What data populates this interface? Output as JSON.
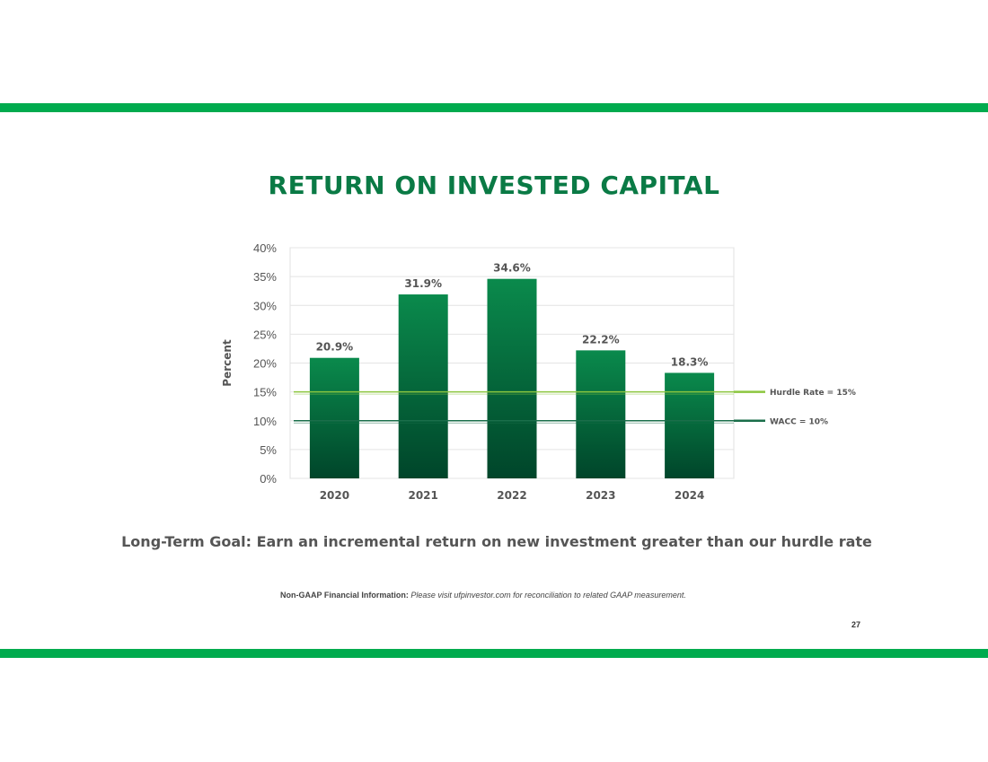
{
  "slide": {
    "title": "RETURN ON INVESTED CAPITAL",
    "goal": "Long-Term Goal: Earn an incremental return on new investment greater than our hurdle rate",
    "disclaimer_lead": "Non-GAAP Financial Information:",
    "disclaimer_body": "Please visit ufpinvestor.com for reconciliation to related GAAP measurement.",
    "page_number": "27"
  },
  "colors": {
    "band": "#00ab4e",
    "title": "#0a7a45",
    "bar_top": "#0a8a4c",
    "bar_bottom": "#00452a",
    "hurdle_line": "#8cc63f",
    "wacc_line": "#1a6e4a"
  },
  "chart_data": {
    "type": "bar",
    "categories": [
      "2020",
      "2021",
      "2022",
      "2023",
      "2024"
    ],
    "values": [
      20.9,
      31.9,
      34.6,
      22.2,
      18.3
    ],
    "value_labels": [
      "20.9%",
      "31.9%",
      "34.6%",
      "22.2%",
      "18.3%"
    ],
    "ylabel": "Percent",
    "ylim": [
      0,
      40
    ],
    "yticks": [
      0,
      5,
      10,
      15,
      20,
      25,
      30,
      35,
      40
    ],
    "ytick_labels": [
      "0%",
      "5%",
      "10%",
      "15%",
      "20%",
      "25%",
      "30%",
      "35%",
      "40%"
    ],
    "grid": true,
    "reference_lines": [
      {
        "label": "Hurdle Rate = 15%",
        "value": 15
      },
      {
        "label": "WACC = 10%",
        "value": 10
      }
    ]
  }
}
